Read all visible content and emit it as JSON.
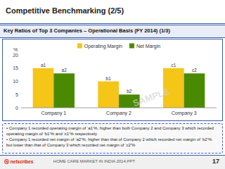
{
  "chart_data": {
    "type": "bar",
    "title": "Competitive Benchmarking (2/5)",
    "subtitle": "Key Ratios of Top 3 Companies – Operational Basis (FY 2014) (1/3)",
    "categories": [
      "Company 1",
      "Company 2",
      "Company 3"
    ],
    "series": [
      {
        "name": "Operating Margin",
        "color": "#F5C518",
        "values": [
          15,
          10,
          15
        ],
        "value_labels": [
          "a1",
          "b1",
          "c1"
        ]
      },
      {
        "name": "Net Margin",
        "color": "#4A8A00",
        "values": [
          13,
          5,
          13
        ],
        "value_labels": [
          "a2",
          "b2",
          "c2"
        ]
      }
    ],
    "ylabel": "%",
    "ylim": [
      0,
      20
    ],
    "yticks": [
      0,
      5,
      10,
      15,
      20
    ],
    "grid": false,
    "legend": "top",
    "data_labels": true,
    "annotations": [
      "SAMPLE",
      "• Company 1 recorded operating margin of ‘a1’%, higher than both Company 2 and Company 3 which recorded operating margin of ‘b1’% and ‘c1’% respectively",
      "• Company 1 recorded net margin of ‘a2’%, higher than that of Company 2 which recorded net margin of ‘b2’% but lower than that of Company 3 which recorded net margin of ‘c2’%",
      "Ⓝ netscribes",
      "HOME CARE MARKET IN INDIA 2014.PPT",
      "17"
    ]
  }
}
